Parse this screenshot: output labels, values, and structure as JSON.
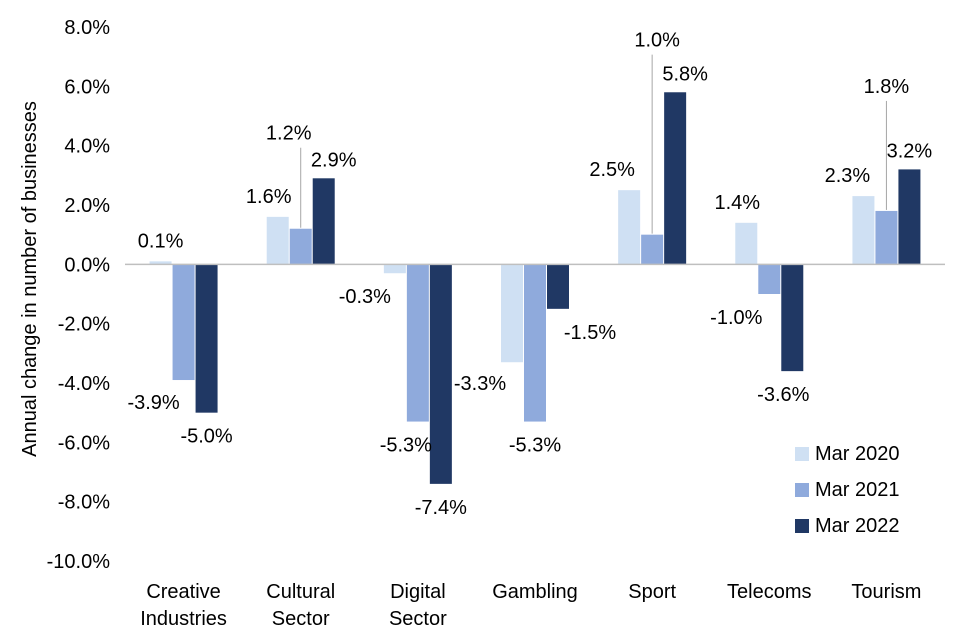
{
  "chart_data": {
    "type": "bar",
    "ylabel": "Annual change in number of businesses",
    "xlabel": "",
    "ylim": [
      -10,
      8
    ],
    "yticks": [
      "8.0%",
      "6.0%",
      "4.0%",
      "2.0%",
      "0.0%",
      "-2.0%",
      "-4.0%",
      "-6.0%",
      "-8.0%",
      "-10.0%"
    ],
    "ytick_values": [
      8,
      6,
      4,
      2,
      0,
      -2,
      -4,
      -6,
      -8,
      -10
    ],
    "categories": [
      [
        "Creative",
        "Industries"
      ],
      [
        "Cultural",
        "Sector"
      ],
      [
        "Digital",
        "Sector"
      ],
      [
        "Gambling"
      ],
      [
        "Sport"
      ],
      [
        "Telecoms"
      ],
      [
        "Tourism"
      ]
    ],
    "series": [
      {
        "name": "Mar 2020",
        "color": "#cfe0f3",
        "values": [
          0.1,
          1.6,
          -0.3,
          -3.3,
          2.5,
          1.4,
          2.3
        ],
        "labels": [
          "0.1%",
          "1.6%",
          "-0.3%",
          "-3.3%",
          "2.5%",
          "1.4%",
          "2.3%"
        ]
      },
      {
        "name": "Mar 2021",
        "color": "#8faadc",
        "values": [
          -3.9,
          1.2,
          -5.3,
          -5.3,
          1.0,
          -1.0,
          1.8
        ],
        "labels": [
          "-3.9%",
          "1.2%",
          "-5.3%",
          "-5.3%",
          "1.0%",
          "-1.0%",
          "1.8%"
        ]
      },
      {
        "name": "Mar 2022",
        "color": "#203864",
        "values": [
          -5.0,
          2.9,
          -7.4,
          -1.5,
          5.8,
          -3.6,
          3.2
        ],
        "labels": [
          "-5.0%",
          "2.9%",
          "-7.4%",
          "-1.5%",
          "5.8%",
          "-3.6%",
          "3.2%"
        ]
      }
    ],
    "legend": {
      "position": "bottom-right"
    },
    "grid": false
  }
}
